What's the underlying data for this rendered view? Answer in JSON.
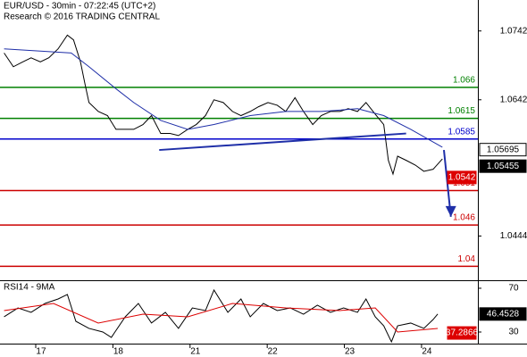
{
  "chart_data": [
    {
      "type": "line",
      "title": "EUR/USD - 30min - 07:22:45 (UTC+2)",
      "subtitle": "Research © 2016 TRADING CENTRAL",
      "xlim": [
        -0.463,
        5.73
      ],
      "ylim": [
        1.0381,
        1.0787
      ],
      "yticks": [
        1.0444,
        1.0642,
        1.0742
      ],
      "series": [
        {
          "color": "#000000",
          "x": [
            -0.41,
            -0.29,
            -0.17,
            -0.06,
            0.06,
            0.17,
            0.29,
            0.41,
            0.49,
            0.58,
            0.64,
            0.69,
            0.81,
            0.93,
            1.04,
            1.16,
            1.27,
            1.39,
            1.5,
            1.62,
            1.74,
            1.85,
            1.97,
            2.08,
            2.2,
            2.31,
            2.43,
            2.55,
            2.66,
            2.78,
            2.89,
            3.01,
            3.13,
            3.24,
            3.36,
            3.47,
            3.59,
            3.7,
            3.82,
            3.94,
            4.05,
            4.17,
            4.28,
            4.4,
            4.51,
            4.57,
            4.63,
            4.69,
            4.8,
            4.92,
            5.03,
            5.15,
            5.27
          ],
          "values": [
            1.071,
            1.069,
            1.0697,
            1.0703,
            1.0697,
            1.0703,
            1.0716,
            1.0736,
            1.0729,
            1.0697,
            1.0664,
            1.0638,
            1.0625,
            1.0619,
            1.0599,
            1.0599,
            1.0599,
            1.0606,
            1.0619,
            1.0593,
            1.0593,
            1.059,
            1.0599,
            1.0606,
            1.0619,
            1.0642,
            1.0638,
            1.0625,
            1.0619,
            1.0625,
            1.0632,
            1.0638,
            1.0634,
            1.0625,
            1.0645,
            1.0625,
            1.0606,
            1.0619,
            1.0625,
            1.0625,
            1.0629,
            1.0625,
            1.0638,
            1.0621,
            1.0606,
            1.0554,
            1.0534,
            1.056,
            1.0554,
            1.0547,
            1.0538,
            1.0541,
            1.0556
          ]
        },
        {
          "color": "#1f2fa8",
          "x": [
            -0.41,
            0.46,
            0.69,
            1.04,
            1.27,
            1.62,
            1.97,
            2.31,
            2.78,
            3.24,
            3.7,
            4.17,
            4.51,
            4.86,
            5.27
          ],
          "values": [
            1.0716,
            1.071,
            1.069,
            1.0658,
            1.0638,
            1.0612,
            1.0599,
            1.0606,
            1.0619,
            1.0625,
            1.0625,
            1.0629,
            1.0619,
            1.0599,
            1.0573
          ]
        }
      ],
      "trendline": {
        "color": "#1f2fa8",
        "x": [
          1.6,
          4.8
        ],
        "values": [
          1.0569,
          1.0593
        ]
      },
      "arrow": {
        "color": "#1f2fa8",
        "x": [
          5.29,
          5.38
        ],
        "values": [
          1.0569,
          1.0472
        ]
      },
      "levels": [
        {
          "value": 1.066,
          "color": "#008000"
        },
        {
          "value": 1.0615,
          "color": "#008000"
        },
        {
          "value": 1.0585,
          "color": "#0000cc"
        },
        {
          "value": 1.051,
          "color": "#cc0000"
        },
        {
          "value": 1.046,
          "color": "#cc0000"
        },
        {
          "value": 1.04,
          "color": "#cc0000"
        }
      ],
      "price_tags": [
        {
          "value": 1.05695,
          "color": "#ffffff"
        },
        {
          "value": 1.05455,
          "color": "#000000"
        },
        {
          "value": 1.0542,
          "color": "#dd0000"
        }
      ]
    },
    {
      "type": "line",
      "title": "RSI14 - 9MA",
      "xlim": [
        -0.463,
        5.73
      ],
      "ylim": [
        19.4,
        76.5
      ],
      "yticks": [
        30,
        70
      ],
      "xticks": [
        {
          "value": 0,
          "label": "17"
        },
        {
          "value": 1,
          "label": "18"
        },
        {
          "value": 2,
          "label": "21"
        },
        {
          "value": 3,
          "label": "22"
        },
        {
          "value": 4,
          "label": "23"
        },
        {
          "value": 5,
          "label": "24"
        }
      ],
      "series": [
        {
          "color": "#000000",
          "x": [
            -0.41,
            -0.23,
            -0.06,
            0.12,
            0.29,
            0.41,
            0.52,
            0.69,
            0.87,
            0.98,
            1.16,
            1.33,
            1.5,
            1.68,
            1.85,
            2.03,
            2.2,
            2.31,
            2.49,
            2.66,
            2.78,
            2.95,
            3.13,
            3.3,
            3.47,
            3.65,
            3.82,
            3.99,
            4.17,
            4.28,
            4.4,
            4.51,
            4.61,
            4.69,
            4.86,
            5.03,
            5.15,
            5.21
          ],
          "values": [
            43.9,
            52,
            48,
            56.1,
            60.2,
            64.3,
            39.8,
            33.3,
            30,
            25.1,
            43.9,
            56.1,
            38.2,
            48,
            33.3,
            52,
            49.6,
            68.4,
            48,
            60.2,
            43.9,
            56.1,
            49.6,
            52,
            46.3,
            54.5,
            48,
            52,
            48,
            60.2,
            43.9,
            35.7,
            21,
            35.7,
            38.2,
            33.3,
            41.4,
            46.5
          ]
        },
        {
          "color": "#dd0000",
          "x": [
            -0.41,
            0.23,
            0.81,
            1.39,
            1.97,
            2.55,
            3.24,
            3.94,
            4.4,
            4.69,
            5.21
          ],
          "values": [
            49.6,
            56.1,
            38.2,
            46.3,
            43.9,
            56.1,
            52,
            49.6,
            52,
            30,
            33.3
          ]
        }
      ],
      "price_tags": [
        {
          "value": 46.4528,
          "color": "#000000"
        },
        {
          "value": 37.2866,
          "color": "#dd0000"
        }
      ]
    }
  ]
}
